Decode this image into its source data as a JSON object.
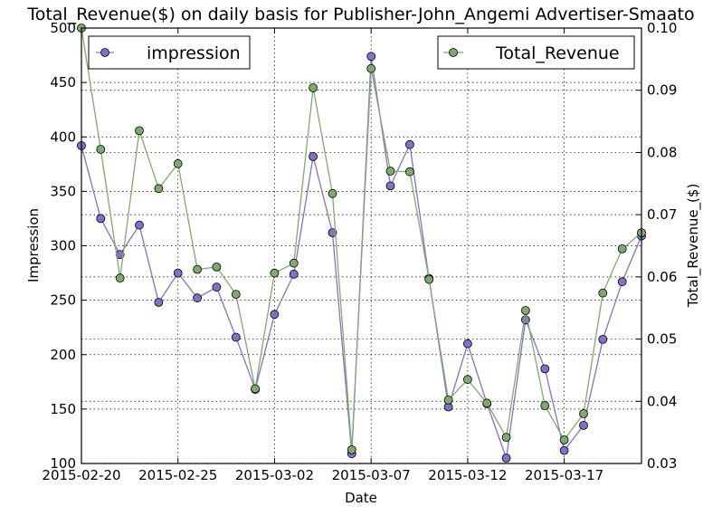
{
  "chart_data": {
    "type": "line",
    "title": "Total_Revenue($) on daily basis for Publisher-John_Angemi Advertiser-Smaato",
    "xlabel": "Date",
    "ylabel_left": "Impression",
    "ylabel_right": "Total_Revenue_($)",
    "x_tick_labels": [
      "2015-02-20",
      "2015-02-25",
      "2015-03-02",
      "2015-03-07",
      "2015-03-12",
      "2015-03-17"
    ],
    "x_tick_days": [
      0,
      5,
      10,
      15,
      20,
      25
    ],
    "xlim_days": [
      0,
      29
    ],
    "ylim_left": [
      100,
      500
    ],
    "yticks_left": [
      100,
      150,
      200,
      250,
      300,
      350,
      400,
      450,
      500
    ],
    "ylim_right": [
      0.03,
      0.1
    ],
    "yticks_right": [
      "0.03",
      "0.04",
      "0.05",
      "0.06",
      "0.07",
      "0.08",
      "0.09",
      "0.10"
    ],
    "grid": true,
    "series": [
      {
        "name": "impression",
        "axis": "left",
        "color": "#8470c8",
        "legend_position": "top-left",
        "dates": [
          "2015-02-20",
          "2015-02-21",
          "2015-02-22",
          "2015-02-23",
          "2015-02-24",
          "2015-02-25",
          "2015-02-26",
          "2015-02-27",
          "2015-02-28",
          "2015-03-01",
          "2015-03-02",
          "2015-03-03",
          "2015-03-04",
          "2015-03-05",
          "2015-03-06",
          "2015-03-07",
          "2015-03-08",
          "2015-03-09",
          "2015-03-10",
          "2015-03-11",
          "2015-03-12",
          "2015-03-13",
          "2015-03-14",
          "2015-03-15",
          "2015-03-16",
          "2015-03-17",
          "2015-03-18",
          "2015-03-19",
          "2015-03-20",
          "2015-03-21"
        ],
        "values": [
          392,
          325,
          292,
          319,
          248,
          275,
          252,
          262,
          216,
          168,
          237,
          274,
          382,
          312,
          109,
          474,
          355,
          393,
          270,
          152,
          210,
          155,
          105,
          232,
          187,
          112,
          135,
          214,
          267,
          309
        ]
      },
      {
        "name": "Total_Revenue",
        "axis": "right",
        "color": "#7faa6e",
        "legend_position": "top-right",
        "dates": [
          "2015-02-20",
          "2015-02-21",
          "2015-02-22",
          "2015-02-23",
          "2015-02-24",
          "2015-02-25",
          "2015-02-26",
          "2015-02-27",
          "2015-02-28",
          "2015-03-01",
          "2015-03-02",
          "2015-03-03",
          "2015-03-04",
          "2015-03-05",
          "2015-03-06",
          "2015-03-07",
          "2015-03-08",
          "2015-03-09",
          "2015-03-10",
          "2015-03-11",
          "2015-03-12",
          "2015-03-13",
          "2015-03-14",
          "2015-03-15",
          "2015-03-16",
          "2015-03-17",
          "2015-03-18",
          "2015-03-19",
          "2015-03-20",
          "2015-03-21"
        ],
        "values": [
          0.1,
          0.0805,
          0.0598,
          0.0835,
          0.0742,
          0.0782,
          0.0612,
          0.0616,
          0.0572,
          0.042,
          0.0606,
          0.0622,
          0.0904,
          0.0734,
          0.0322,
          0.0935,
          0.077,
          0.0769,
          0.0596,
          0.0402,
          0.0435,
          0.0397,
          0.0342,
          0.0546,
          0.0393,
          0.0338,
          0.038,
          0.0574,
          0.0645,
          0.0671
        ]
      }
    ]
  }
}
